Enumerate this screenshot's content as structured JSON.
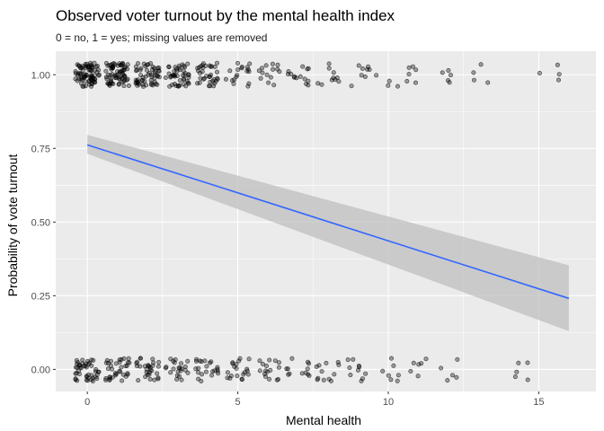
{
  "chart_data": {
    "type": "scatter",
    "title": "Observed voter turnout by the mental health index",
    "subtitle": "0 = no, 1 = yes; missing values are removed",
    "xlabel": "Mental health",
    "ylabel": "Probability of vote turnout",
    "xlim": [
      -1.05,
      16.9
    ],
    "ylim": [
      -0.075,
      1.08
    ],
    "x_ticks": [
      0,
      5,
      10,
      15
    ],
    "y_ticks": [
      0.0,
      0.25,
      0.5,
      0.75,
      1.0
    ],
    "x_tick_labels": [
      "0",
      "5",
      "10",
      "15"
    ],
    "y_tick_labels": [
      "0.00",
      "0.25",
      "0.50",
      "0.75",
      "1.00"
    ],
    "grid": true,
    "point_groups": [
      {
        "x": 0,
        "y": 1,
        "count": 80
      },
      {
        "x": 1,
        "y": 1,
        "count": 70
      },
      {
        "x": 2,
        "y": 1,
        "count": 55
      },
      {
        "x": 3,
        "y": 1,
        "count": 45
      },
      {
        "x": 4,
        "y": 1,
        "count": 35
      },
      {
        "x": 5,
        "y": 1,
        "count": 18
      },
      {
        "x": 6,
        "y": 1,
        "count": 14
      },
      {
        "x": 7,
        "y": 1,
        "count": 14
      },
      {
        "x": 8,
        "y": 1,
        "count": 10
      },
      {
        "x": 9,
        "y": 1,
        "count": 8
      },
      {
        "x": 10,
        "y": 1,
        "count": 4
      },
      {
        "x": 11,
        "y": 1,
        "count": 6
      },
      {
        "x": 12,
        "y": 1,
        "count": 5
      },
      {
        "x": 13,
        "y": 1,
        "count": 4
      },
      {
        "x": 15,
        "y": 1,
        "count": 1
      },
      {
        "x": 16,
        "y": 1,
        "count": 3
      },
      {
        "x": 0,
        "y": 0,
        "count": 45
      },
      {
        "x": 1,
        "y": 0,
        "count": 35
      },
      {
        "x": 2,
        "y": 0,
        "count": 30
      },
      {
        "x": 3,
        "y": 0,
        "count": 22
      },
      {
        "x": 4,
        "y": 0,
        "count": 22
      },
      {
        "x": 5,
        "y": 0,
        "count": 20
      },
      {
        "x": 6,
        "y": 0,
        "count": 16
      },
      {
        "x": 7,
        "y": 0,
        "count": 12
      },
      {
        "x": 8,
        "y": 0,
        "count": 12
      },
      {
        "x": 9,
        "y": 0,
        "count": 10
      },
      {
        "x": 10,
        "y": 0,
        "count": 7
      },
      {
        "x": 11,
        "y": 0,
        "count": 6
      },
      {
        "x": 12,
        "y": 0,
        "count": 5
      },
      {
        "x": 14,
        "y": 0,
        "count": 3
      },
      {
        "x": 15,
        "y": 0,
        "count": 2
      }
    ],
    "fit_line": {
      "x": [
        0,
        16
      ],
      "y": [
        0.762,
        0.241
      ],
      "ci_lower": [
        0.732,
        0.13
      ],
      "ci_upper": [
        0.796,
        0.353
      ]
    },
    "colors": {
      "panel": "#ebebeb",
      "grid": "#ffffff",
      "line": "#3366ff",
      "ribbon": "#bfbfbf",
      "points": "#000000"
    }
  }
}
